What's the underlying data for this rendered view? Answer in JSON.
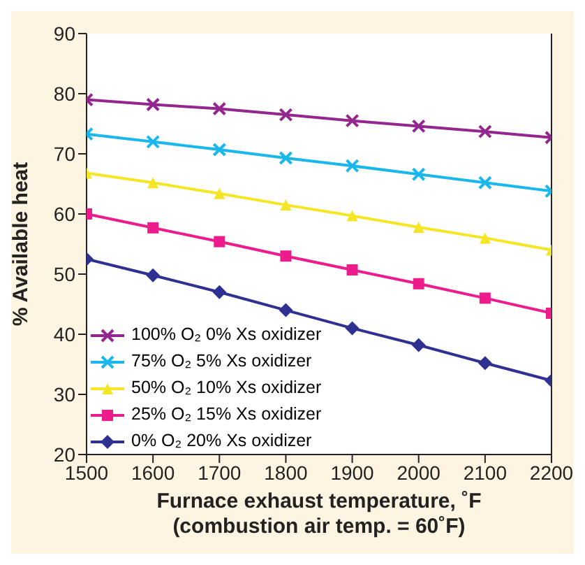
{
  "chart_data": {
    "type": "line",
    "xlabel": "Furnace exhaust temperature, ˚F\n(combustion air temp. = 60˚F)",
    "ylabel": "% Available heat",
    "x": [
      1500,
      1600,
      1700,
      1800,
      1900,
      2000,
      2100,
      2200
    ],
    "xlim": [
      1500,
      2200
    ],
    "xticks": [
      1500,
      1600,
      1700,
      1800,
      1900,
      2000,
      2100,
      2200
    ],
    "ylim": [
      20,
      90
    ],
    "yticks": [
      20,
      30,
      40,
      50,
      60,
      70,
      80,
      90
    ],
    "grid": false,
    "legend": "bottom left",
    "line_style": "solid",
    "series": [
      {
        "name": "100% O₂ 0% Xs oxidizer",
        "color": "#93278f",
        "marker": "cross",
        "values": [
          79,
          78.2,
          77.5,
          76.5,
          75.5,
          74.6,
          73.7,
          72.7
        ]
      },
      {
        "name": "75% O₂ 5% Xs oxidizer",
        "color": "#1ab7ea",
        "marker": "cross",
        "values": [
          73.3,
          72,
          70.7,
          69.3,
          68,
          66.6,
          65.2,
          63.8
        ]
      },
      {
        "name": "50% O₂ 10% Xs oxidizer",
        "color": "#f5e625",
        "marker": "triangle",
        "values": [
          66.8,
          65.2,
          63.4,
          61.5,
          59.7,
          57.8,
          56,
          54
        ]
      },
      {
        "name": "25% O₂ 15% Xs oxidizer",
        "color": "#ec1c8c",
        "marker": "square",
        "values": [
          60,
          57.7,
          55.4,
          53,
          50.7,
          48.4,
          46,
          43.5
        ]
      },
      {
        "name": "0% O₂ 20% Xs oxidizer",
        "color": "#2e3192",
        "marker": "diamond",
        "values": [
          52.5,
          49.8,
          47,
          44,
          41,
          38.2,
          35.2,
          32.3
        ]
      }
    ]
  }
}
